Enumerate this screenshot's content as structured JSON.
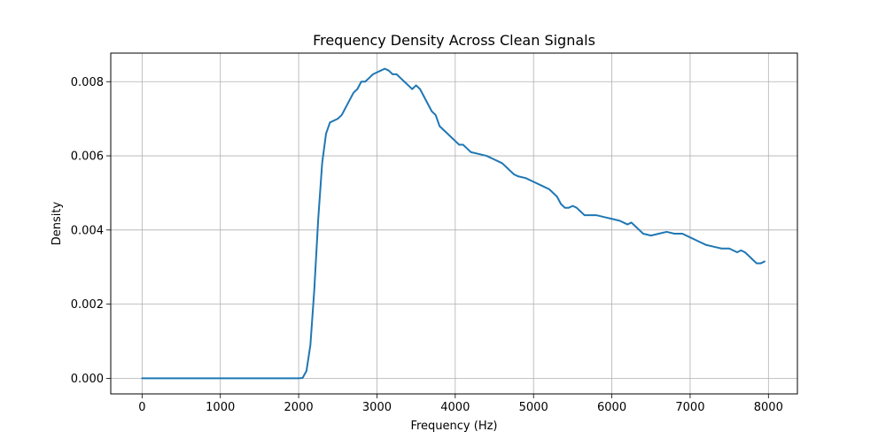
{
  "chart_data": {
    "type": "line",
    "title": "Frequency Density Across Clean Signals",
    "xlabel": "Frequency (Hz)",
    "ylabel": "Density",
    "xlim": [
      -400,
      8370
    ],
    "ylim": [
      -0.00042,
      0.00877
    ],
    "grid": true,
    "x_ticks": [
      0,
      1000,
      2000,
      3000,
      4000,
      5000,
      6000,
      7000,
      8000
    ],
    "x_tick_labels": [
      "0",
      "1000",
      "2000",
      "3000",
      "4000",
      "5000",
      "6000",
      "7000",
      "8000"
    ],
    "y_ticks": [
      0,
      0.002,
      0.004,
      0.006,
      0.008
    ],
    "y_tick_labels": [
      "0.000",
      "0.002",
      "0.004",
      "0.006",
      "0.008"
    ],
    "series": [
      {
        "color": "#1f77b4",
        "x": [
          0,
          500,
          1000,
          1500,
          2000,
          2050,
          2100,
          2150,
          2200,
          2250,
          2300,
          2350,
          2400,
          2450,
          2500,
          2550,
          2600,
          2650,
          2700,
          2750,
          2800,
          2850,
          2900,
          2950,
          3000,
          3050,
          3100,
          3150,
          3200,
          3250,
          3300,
          3350,
          3400,
          3450,
          3500,
          3550,
          3600,
          3650,
          3700,
          3750,
          3800,
          3850,
          3900,
          3950,
          4000,
          4050,
          4100,
          4150,
          4200,
          4300,
          4400,
          4500,
          4550,
          4600,
          4650,
          4700,
          4750,
          4800,
          4900,
          5000,
          5100,
          5200,
          5300,
          5350,
          5400,
          5450,
          5500,
          5550,
          5600,
          5650,
          5700,
          5800,
          5900,
          6000,
          6100,
          6150,
          6200,
          6250,
          6300,
          6350,
          6400,
          6500,
          6600,
          6700,
          6800,
          6900,
          7000,
          7100,
          7200,
          7300,
          7400,
          7500,
          7600,
          7650,
          7700,
          7750,
          7800,
          7850,
          7900,
          7950
        ],
        "y": [
          0,
          0,
          0,
          0,
          0,
          1e-05,
          0.0002,
          0.0009,
          0.0024,
          0.0043,
          0.0058,
          0.0066,
          0.0069,
          0.00695,
          0.007,
          0.0071,
          0.0073,
          0.0075,
          0.0077,
          0.0078,
          0.008,
          0.008,
          0.0081,
          0.0082,
          0.00825,
          0.0083,
          0.00835,
          0.0083,
          0.0082,
          0.0082,
          0.0081,
          0.008,
          0.0079,
          0.0078,
          0.0079,
          0.0078,
          0.0076,
          0.0074,
          0.0072,
          0.0071,
          0.0068,
          0.0067,
          0.0066,
          0.0065,
          0.0064,
          0.0063,
          0.0063,
          0.0062,
          0.0061,
          0.00605,
          0.006,
          0.0059,
          0.00585,
          0.0058,
          0.0057,
          0.0056,
          0.0055,
          0.00545,
          0.0054,
          0.0053,
          0.0052,
          0.0051,
          0.0049,
          0.0047,
          0.0046,
          0.0046,
          0.00465,
          0.0046,
          0.0045,
          0.0044,
          0.0044,
          0.0044,
          0.00435,
          0.0043,
          0.00425,
          0.0042,
          0.00415,
          0.0042,
          0.0041,
          0.004,
          0.0039,
          0.00385,
          0.0039,
          0.00395,
          0.0039,
          0.0039,
          0.0038,
          0.0037,
          0.0036,
          0.00355,
          0.0035,
          0.0035,
          0.0034,
          0.00345,
          0.0034,
          0.0033,
          0.0032,
          0.0031,
          0.0031,
          0.00315
        ]
      }
    ]
  }
}
